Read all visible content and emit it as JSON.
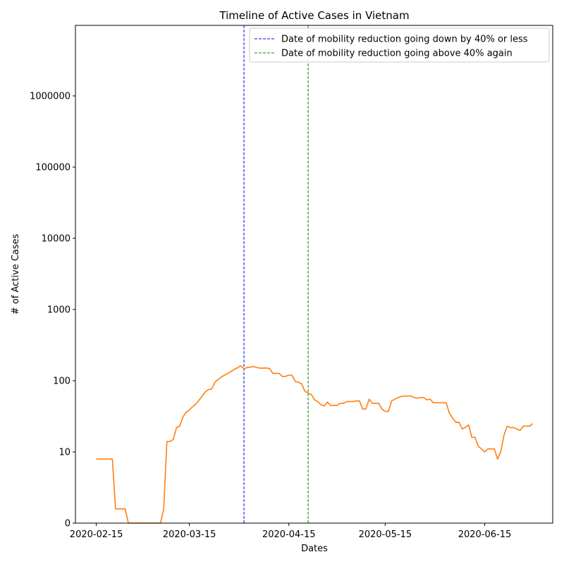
{
  "chart_data": {
    "type": "line",
    "title": "Timeline of Active Cases in Vietnam",
    "xlabel": "Dates",
    "ylabel": "# of Active Cases",
    "x_range": [
      "2020-02-15",
      "2020-06-30"
    ],
    "x_ticks": [
      "2020-02-15",
      "2020-03-15",
      "2020-04-15",
      "2020-05-15",
      "2020-06-15"
    ],
    "y_scale": "symlog",
    "y_ticks": [
      0,
      10,
      100,
      1000,
      10000,
      100000,
      1000000
    ],
    "y_tick_labels": [
      "0",
      "10",
      "100",
      "1000",
      "10000",
      "100000",
      "1000000"
    ],
    "ylim": [
      0,
      10000000
    ],
    "grid": false,
    "legend_position": "top-right",
    "series": [
      {
        "color": "#ff7f0e",
        "points": [
          [
            "2020-02-15",
            9
          ],
          [
            "2020-02-20",
            9
          ],
          [
            "2020-02-21",
            2
          ],
          [
            "2020-02-24",
            2
          ],
          [
            "2020-02-25",
            0
          ],
          [
            "2020-03-06",
            0
          ],
          [
            "2020-03-07",
            2
          ],
          [
            "2020-03-08",
            14
          ],
          [
            "2020-03-09",
            14
          ],
          [
            "2020-03-10",
            15
          ],
          [
            "2020-03-11",
            22
          ],
          [
            "2020-03-12",
            23
          ],
          [
            "2020-03-13",
            31
          ],
          [
            "2020-03-14",
            36
          ],
          [
            "2020-03-15",
            39
          ],
          [
            "2020-03-16",
            43
          ],
          [
            "2020-03-17",
            47
          ],
          [
            "2020-03-18",
            53
          ],
          [
            "2020-03-19",
            61
          ],
          [
            "2020-03-20",
            70
          ],
          [
            "2020-03-21",
            75
          ],
          [
            "2020-03-22",
            77
          ],
          [
            "2020-03-23",
            96
          ],
          [
            "2020-03-24",
            104
          ],
          [
            "2020-03-25",
            113
          ],
          [
            "2020-03-26",
            120
          ],
          [
            "2020-03-27",
            127
          ],
          [
            "2020-03-28",
            135
          ],
          [
            "2020-03-29",
            144
          ],
          [
            "2020-03-30",
            152
          ],
          [
            "2020-03-31",
            162
          ],
          [
            "2020-04-01",
            147
          ],
          [
            "2020-04-02",
            153
          ],
          [
            "2020-04-03",
            155
          ],
          [
            "2020-04-04",
            158
          ],
          [
            "2020-04-05",
            153
          ],
          [
            "2020-04-06",
            150
          ],
          [
            "2020-04-07",
            150
          ],
          [
            "2020-04-08",
            151
          ],
          [
            "2020-04-09",
            148
          ],
          [
            "2020-04-10",
            127
          ],
          [
            "2020-04-11",
            127
          ],
          [
            "2020-04-12",
            127
          ],
          [
            "2020-04-13",
            114
          ],
          [
            "2020-04-14",
            115
          ],
          [
            "2020-04-15",
            120
          ],
          [
            "2020-04-16",
            119
          ],
          [
            "2020-04-17",
            97
          ],
          [
            "2020-04-18",
            95
          ],
          [
            "2020-04-19",
            90
          ],
          [
            "2020-04-20",
            71
          ],
          [
            "2020-04-21",
            67
          ],
          [
            "2020-04-22",
            64
          ],
          [
            "2020-04-23",
            54
          ],
          [
            "2020-04-24",
            51
          ],
          [
            "2020-04-25",
            46
          ],
          [
            "2020-04-26",
            44
          ],
          [
            "2020-04-27",
            50
          ],
          [
            "2020-04-28",
            45
          ],
          [
            "2020-04-29",
            45
          ],
          [
            "2020-04-30",
            45
          ],
          [
            "2020-05-01",
            48
          ],
          [
            "2020-05-02",
            48
          ],
          [
            "2020-05-03",
            51
          ],
          [
            "2020-05-04",
            51
          ],
          [
            "2020-05-05",
            51
          ],
          [
            "2020-05-06",
            52
          ],
          [
            "2020-05-07",
            52
          ],
          [
            "2020-05-08",
            40
          ],
          [
            "2020-05-09",
            40
          ],
          [
            "2020-05-10",
            55
          ],
          [
            "2020-05-11",
            48
          ],
          [
            "2020-05-12",
            48
          ],
          [
            "2020-05-13",
            48
          ],
          [
            "2020-05-14",
            40
          ],
          [
            "2020-05-15",
            37
          ],
          [
            "2020-05-16",
            37
          ],
          [
            "2020-05-17",
            52
          ],
          [
            "2020-05-18",
            55
          ],
          [
            "2020-05-19",
            58
          ],
          [
            "2020-05-20",
            60
          ],
          [
            "2020-05-21",
            61
          ],
          [
            "2020-05-22",
            61
          ],
          [
            "2020-05-23",
            61
          ],
          [
            "2020-05-24",
            58
          ],
          [
            "2020-05-25",
            57
          ],
          [
            "2020-05-26",
            58
          ],
          [
            "2020-05-27",
            58
          ],
          [
            "2020-05-28",
            54
          ],
          [
            "2020-05-29",
            55
          ],
          [
            "2020-05-30",
            49
          ],
          [
            "2020-05-31",
            49
          ],
          [
            "2020-06-01",
            49
          ],
          [
            "2020-06-02",
            49
          ],
          [
            "2020-06-03",
            49
          ],
          [
            "2020-06-04",
            35
          ],
          [
            "2020-06-05",
            30
          ],
          [
            "2020-06-06",
            26
          ],
          [
            "2020-06-07",
            26
          ],
          [
            "2020-06-08",
            21
          ],
          [
            "2020-06-09",
            22
          ],
          [
            "2020-06-10",
            24
          ],
          [
            "2020-06-11",
            16
          ],
          [
            "2020-06-12",
            16
          ],
          [
            "2020-06-13",
            12
          ],
          [
            "2020-06-14",
            11
          ],
          [
            "2020-06-15",
            10
          ],
          [
            "2020-06-16",
            11
          ],
          [
            "2020-06-17",
            11
          ],
          [
            "2020-06-18",
            11
          ],
          [
            "2020-06-19",
            9
          ],
          [
            "2020-06-20",
            10
          ],
          [
            "2020-06-21",
            17
          ],
          [
            "2020-06-22",
            23
          ],
          [
            "2020-06-23",
            22
          ],
          [
            "2020-06-24",
            22
          ],
          [
            "2020-06-25",
            21
          ],
          [
            "2020-06-26",
            20
          ],
          [
            "2020-06-27",
            23
          ],
          [
            "2020-06-28",
            23
          ],
          [
            "2020-06-29",
            23
          ],
          [
            "2020-06-30",
            25
          ]
        ]
      }
    ],
    "vlines": [
      {
        "date": "2020-04-01",
        "color": "#0000ff",
        "style": "dashed",
        "label": "Date of mobility reduction going down by 40% or less"
      },
      {
        "date": "2020-04-21",
        "color": "#008000",
        "style": "dashed",
        "label": "Date of mobility reduction going above 40% again"
      }
    ]
  }
}
